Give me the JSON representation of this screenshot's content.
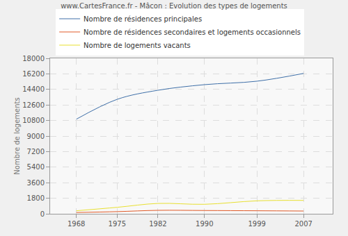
{
  "chart_data": {
    "type": "line",
    "title": "www.CartesFrance.fr - Mâcon : Evolution des types de logements",
    "y_label": "Nombre de logements",
    "x": [
      1968,
      1975,
      1982,
      1990,
      1999,
      2007
    ],
    "series": [
      {
        "name": "Nombre de résidences principales",
        "color": "#3e6fa8",
        "values": [
          10950,
          13250,
          14300,
          14950,
          15350,
          16250
        ]
      },
      {
        "name": "Nombre de résidences secondaires et logements occasionnels",
        "color": "#e05a28",
        "values": [
          150,
          250,
          400,
          380,
          350,
          320
        ]
      },
      {
        "name": "Nombre de logements vacants",
        "color": "#e8e030",
        "values": [
          350,
          750,
          1200,
          1100,
          1500,
          1550
        ]
      }
    ],
    "xlim": [
      1963.5,
      2012
    ],
    "xticks": [
      1968,
      1975,
      1982,
      1990,
      1999,
      2007
    ],
    "ylim": [
      0,
      18000
    ],
    "yticks": [
      0,
      1800,
      3600,
      5400,
      7200,
      9000,
      10800,
      12600,
      14400,
      16200,
      18000
    ],
    "grid": true,
    "legend": "top-left",
    "line_style": "smooth"
  }
}
